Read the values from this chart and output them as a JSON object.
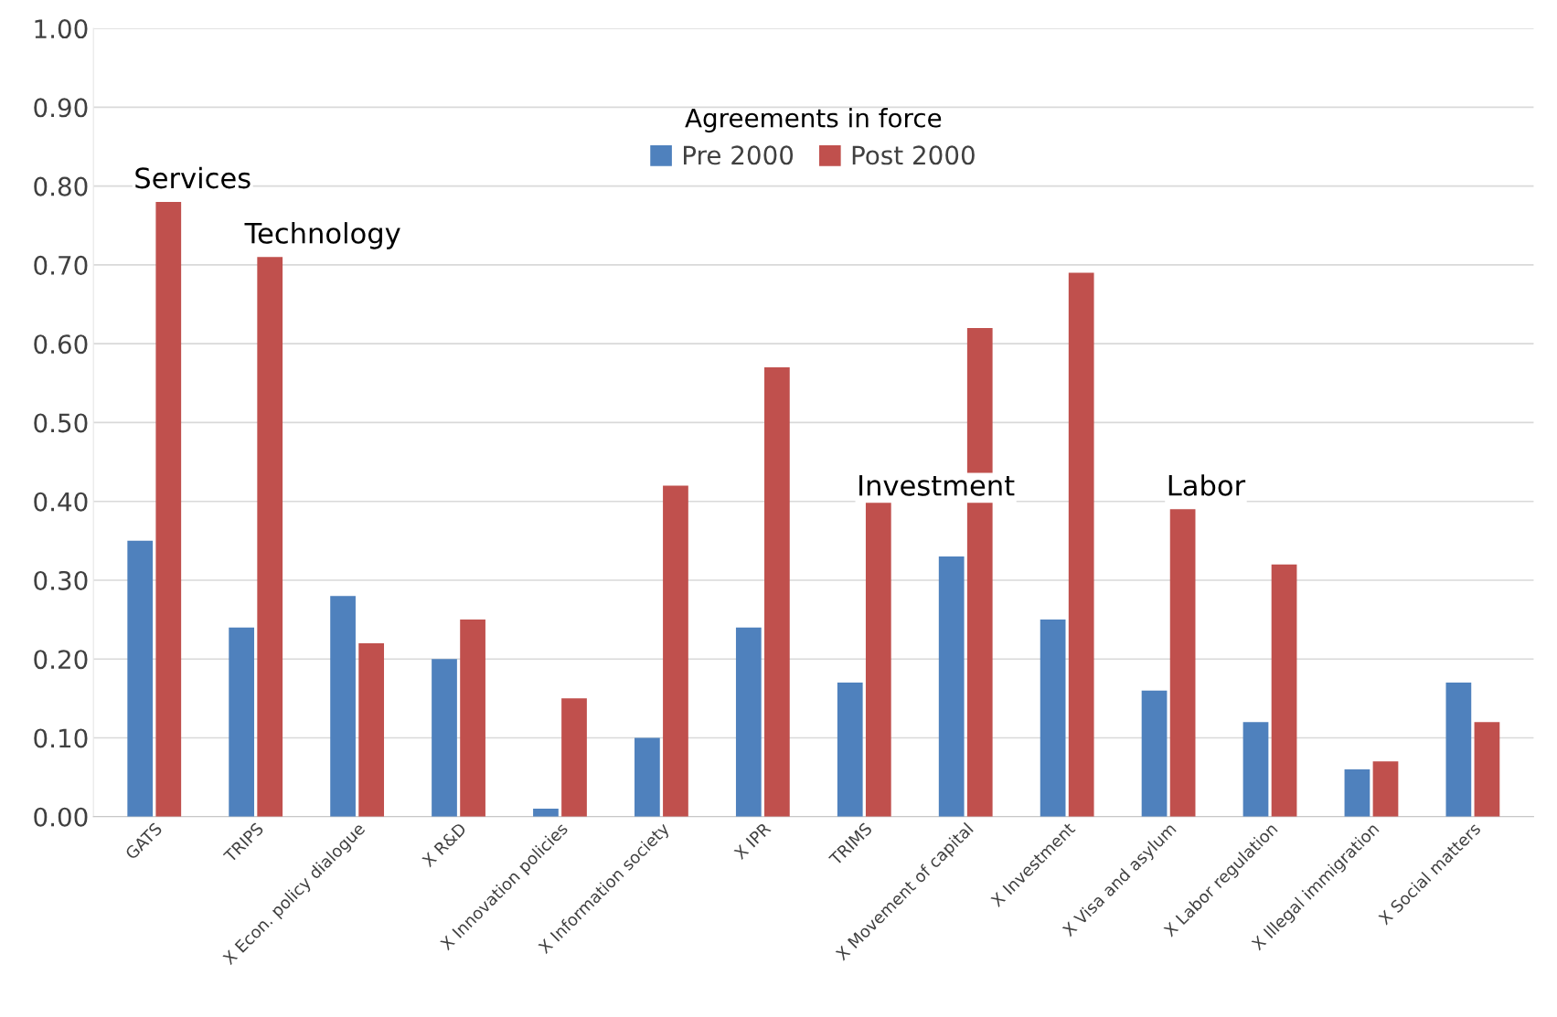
{
  "chart_data": {
    "type": "bar",
    "categories": [
      "GATS",
      "TRIPS",
      "X Econ. policy dialogue",
      "X R&D",
      "X Innovation policies",
      "X Information society",
      "X IPR",
      "TRIMS",
      "X Movement of capital",
      "X Investment",
      "X Visa and asylum",
      "X Labor regulation",
      "X Illegal immigration",
      "X Social matters"
    ],
    "series": [
      {
        "name": "Pre 2000",
        "color": "#4f81bd",
        "values": [
          0.35,
          0.24,
          0.28,
          0.2,
          0.01,
          0.1,
          0.24,
          0.17,
          0.33,
          0.25,
          0.16,
          0.12,
          0.06,
          0.17
        ]
      },
      {
        "name": "Post 2000",
        "color": "#c0504d",
        "values": [
          0.78,
          0.71,
          0.22,
          0.25,
          0.15,
          0.42,
          0.57,
          0.4,
          0.62,
          0.69,
          0.39,
          0.32,
          0.07,
          0.12
        ]
      }
    ],
    "legend_title": "Agreements in force",
    "legend": "top",
    "ylim": [
      0,
      1
    ],
    "yticks": [
      {
        "value": 0,
        "label": "0.00"
      },
      {
        "value": 0.1,
        "label": "0.10"
      },
      {
        "value": 0.2,
        "label": "0.20"
      },
      {
        "value": 0.3,
        "label": "0.30"
      },
      {
        "value": 0.4,
        "label": "0.40"
      },
      {
        "value": 0.5,
        "label": "0.50"
      },
      {
        "value": 0.6,
        "label": "0.60"
      },
      {
        "value": 0.7,
        "label": "0.70"
      },
      {
        "value": 0.8,
        "label": "0.80"
      },
      {
        "value": 0.9,
        "label": "0.90"
      },
      {
        "value": 1,
        "label": "1.00"
      }
    ],
    "grid": "y",
    "annotations": [
      "Services",
      "Technology",
      "Investment",
      "Labor"
    ]
  }
}
